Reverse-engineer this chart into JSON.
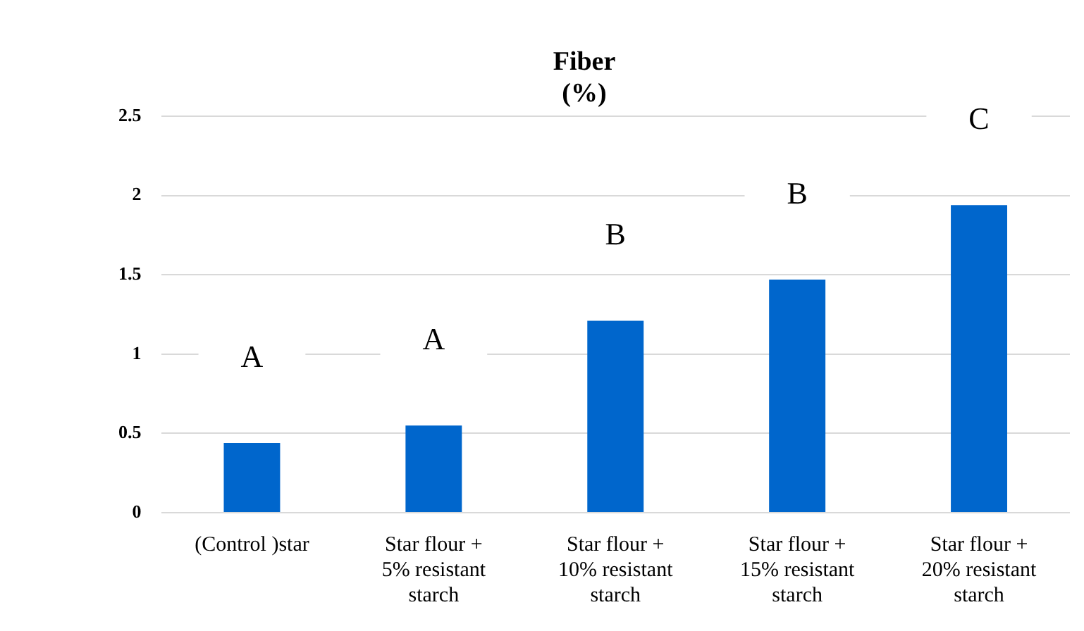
{
  "chart_data": {
    "type": "bar",
    "title": "Fiber (%)",
    "categories": [
      "(Control )star",
      "Star flour + 5% resistant starch",
      "Star flour + 10% resistant starch",
      "Star flour + 15% resistant starch",
      "Star flour + 20% resistant starch"
    ],
    "values": [
      0.44,
      0.55,
      1.21,
      1.47,
      1.94
    ],
    "color": "#0066cc",
    "ylim": [
      0,
      2.5
    ],
    "yticks": [
      0,
      0.5,
      1,
      1.5,
      2,
      2.5
    ],
    "grid": "y",
    "legend": false,
    "annotations": [
      "A",
      "A",
      "B",
      "B",
      "C"
    ]
  }
}
